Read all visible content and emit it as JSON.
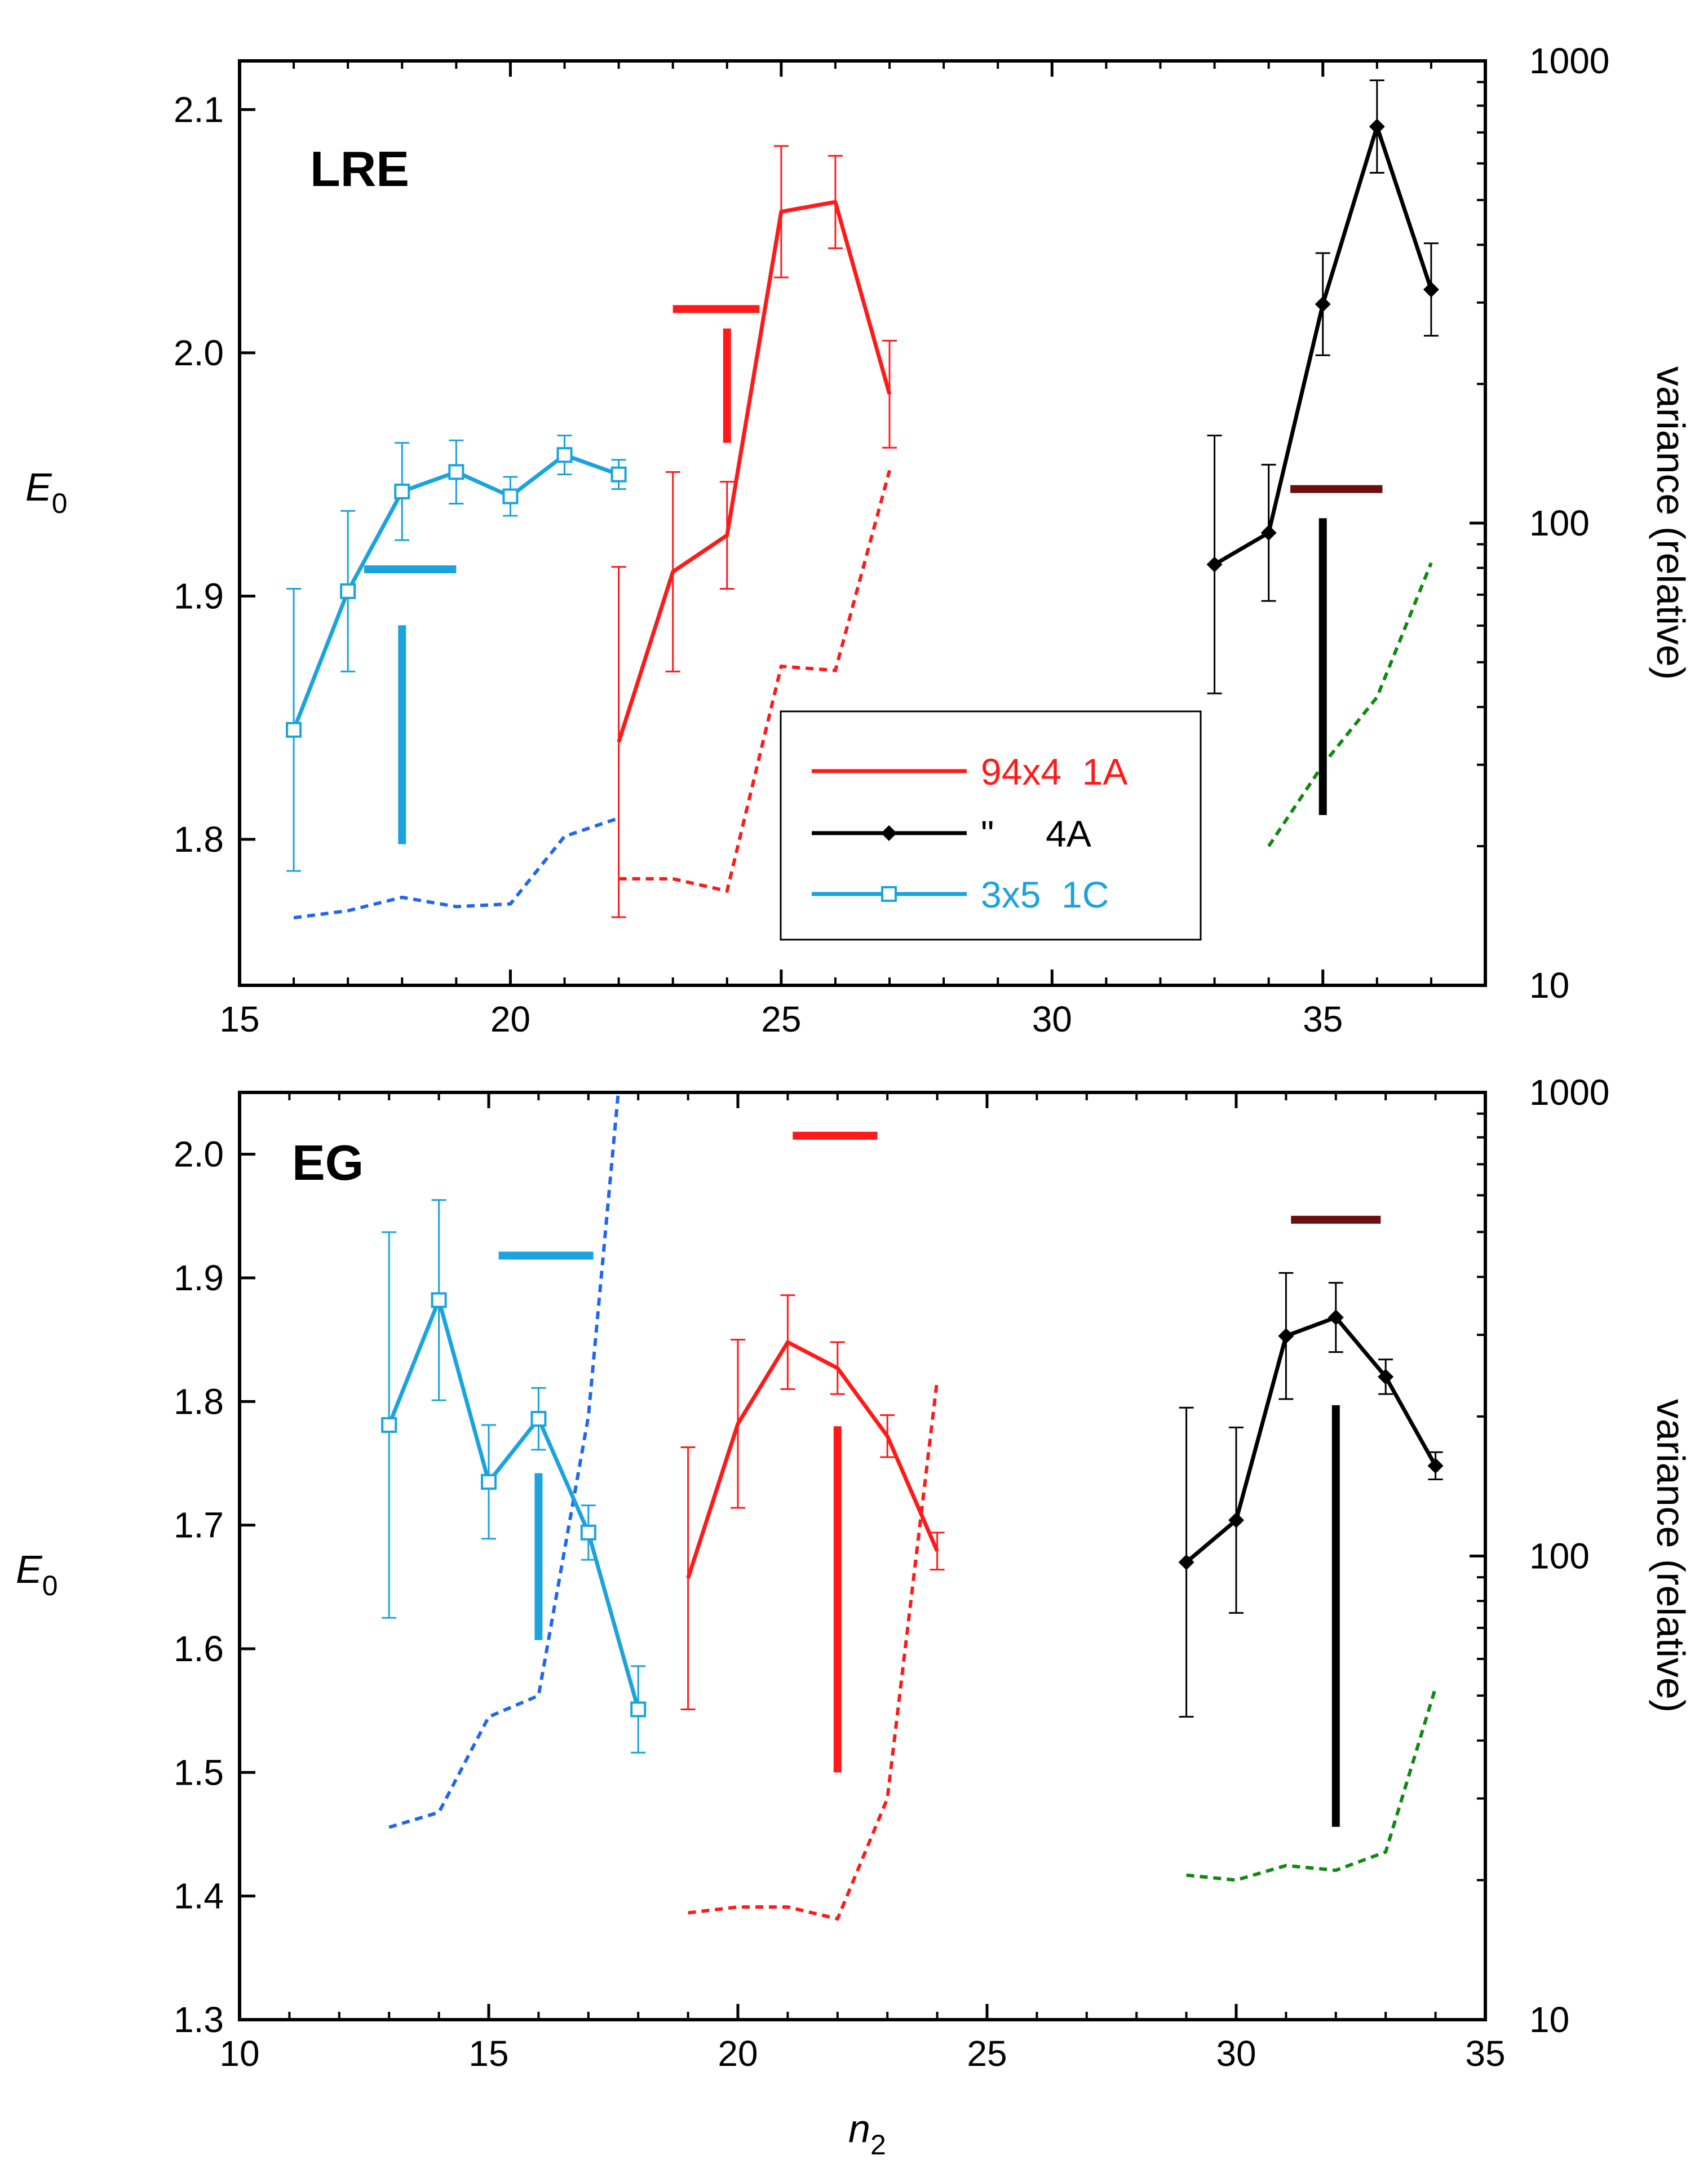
{
  "chart_data": [
    {
      "type": "line",
      "panel_label": "LRE",
      "ylabel": "E",
      "ylabel_sub": "0",
      "y2label": "variance (relative)",
      "xlim": [
        15,
        38
      ],
      "ylim": [
        1.74,
        2.12
      ],
      "y2lim": [
        10,
        1000
      ],
      "y2scale": "log",
      "xticks": [
        "15",
        "20",
        "25",
        "30",
        "35"
      ],
      "yticks": [
        "1.8",
        "1.9",
        "2.0",
        "2.1"
      ],
      "y2ticks": [
        "10",
        "100",
        "1000"
      ],
      "series": [
        {
          "name": "3x5  1C",
          "color": "#1aa3dc",
          "marker": "open-square",
          "x": [
            16,
            17,
            18,
            19,
            20,
            21,
            22
          ],
          "y": [
            1.845,
            1.902,
            1.943,
            1.951,
            1.941,
            1.958,
            1.95
          ],
          "err": [
            0.058,
            0.033,
            0.02,
            0.013,
            0.008,
            0.008,
            0.006
          ]
        },
        {
          "name": "94x4  1A",
          "color": "#ff1a1a",
          "marker": "none",
          "x": [
            22,
            23,
            24,
            25,
            26,
            27
          ],
          "y": [
            1.84,
            1.91,
            1.925,
            2.058,
            2.062,
            1.983
          ],
          "err": [
            0.072,
            0.041,
            0.022,
            0.027,
            0.019,
            0.022
          ]
        },
        {
          "name": "\"     4A",
          "color": "#000000",
          "marker": "filled-diamond",
          "x": [
            33,
            34,
            35,
            36,
            37
          ],
          "y": [
            1.913,
            1.926,
            2.02,
            2.093,
            2.026
          ],
          "err": [
            0.053,
            0.028,
            0.021,
            0.019,
            0.019
          ]
        }
      ],
      "variance_series": [
        {
          "color": "#2266ee",
          "x": [
            16,
            17,
            18,
            19,
            20,
            21,
            22
          ],
          "variance": [
            14,
            14.5,
            15.5,
            14.8,
            15,
            21,
            23
          ]
        },
        {
          "color": "#ff1a1a",
          "x": [
            22,
            23,
            24,
            25,
            26,
            27
          ],
          "variance": [
            17,
            17,
            16,
            49,
            48,
            130
          ]
        },
        {
          "color": "#118811",
          "x": [
            34,
            35,
            36,
            37
          ],
          "variance": [
            20,
            30,
            42,
            82
          ]
        }
      ],
      "markers": [
        {
          "color": "#1aa3dc",
          "orientation": "horizontal",
          "x": [
            17.3,
            19.0
          ],
          "y": 1.911
        },
        {
          "color": "#1aa3dc",
          "orientation": "vertical",
          "x": 18.0,
          "y": [
            1.798,
            1.888
          ]
        },
        {
          "color": "#ff1a1a",
          "orientation": "horizontal",
          "x": [
            23.0,
            24.6
          ],
          "y": 2.018
        },
        {
          "color": "#ff1a1a",
          "orientation": "vertical",
          "x": 24.0,
          "y": [
            1.963,
            2.01
          ]
        },
        {
          "color": "#6b0f0f",
          "orientation": "horizontal",
          "x": [
            34.4,
            36.1
          ],
          "y": 1.944
        },
        {
          "color": "#000000",
          "orientation": "vertical",
          "x": 35.0,
          "y": [
            1.81,
            1.932
          ]
        }
      ],
      "legend": {
        "position": "lower-center",
        "entries": [
          {
            "label": "94x4  1A",
            "color": "#ff1a1a",
            "marker": "none"
          },
          {
            "label": "\"     4A",
            "color": "#000000",
            "marker": "filled-diamond"
          },
          {
            "label": "3x5  1C",
            "color": "#1aa3dc",
            "marker": "open-square"
          }
        ]
      }
    },
    {
      "type": "line",
      "panel_label": "EG",
      "ylabel": "E",
      "ylabel_sub": "0",
      "xlabel": "n",
      "xlabel_sub": "2",
      "y2label": "variance (relative)",
      "xlim": [
        10,
        35
      ],
      "ylim": [
        1.3,
        2.05
      ],
      "y2lim": [
        10,
        1000
      ],
      "y2scale": "log",
      "xticks": [
        "10",
        "15",
        "20",
        "25",
        "30",
        "35"
      ],
      "yticks": [
        "1.3",
        "1.4",
        "1.5",
        "1.6",
        "1.7",
        "1.8",
        "1.9",
        "2.0"
      ],
      "y2ticks": [
        "10",
        "100",
        "1000"
      ],
      "series": [
        {
          "name": "3x5  1C",
          "color": "#1aa3dc",
          "marker": "open-square",
          "x": [
            13,
            14,
            15,
            16,
            17,
            18
          ],
          "y": [
            1.781,
            1.882,
            1.735,
            1.786,
            1.694,
            1.551
          ],
          "err": [
            0.156,
            0.081,
            0.046,
            0.025,
            0.022,
            0.035
          ]
        },
        {
          "name": "94x4  1A",
          "color": "#ff1a1a",
          "marker": "none",
          "x": [
            19,
            20,
            21,
            22,
            23,
            24
          ],
          "y": [
            1.657,
            1.782,
            1.848,
            1.827,
            1.772,
            1.679
          ],
          "err": [
            0.106,
            0.068,
            0.038,
            0.021,
            0.017,
            0.015
          ]
        },
        {
          "name": "\"     4A",
          "color": "#000000",
          "marker": "filled-diamond",
          "x": [
            29,
            30,
            31,
            32,
            33,
            34
          ],
          "y": [
            1.67,
            1.704,
            1.853,
            1.868,
            1.82,
            1.748
          ],
          "err": [
            0.125,
            0.075,
            0.051,
            0.028,
            0.014,
            0.011
          ]
        }
      ],
      "variance_series": [
        {
          "color": "#2266ee",
          "x": [
            13,
            14,
            15,
            16,
            17,
            17.6
          ],
          "variance": [
            26,
            28,
            45,
            50,
            200,
            1000
          ]
        },
        {
          "color": "#ff1a1a",
          "x": [
            19,
            20,
            21,
            22,
            23,
            24
          ],
          "variance": [
            17,
            17.5,
            17.5,
            16.5,
            30,
            240
          ]
        },
        {
          "color": "#118811",
          "x": [
            29,
            30,
            31,
            32,
            33,
            34
          ],
          "variance": [
            20.5,
            20,
            21.5,
            21,
            23,
            52
          ]
        }
      ],
      "markers": [
        {
          "color": "#1aa3dc",
          "orientation": "horizontal",
          "x": [
            15.2,
            17.1
          ],
          "y": 1.918
        },
        {
          "color": "#1aa3dc",
          "orientation": "vertical",
          "x": 16.0,
          "y": [
            1.607,
            1.742
          ]
        },
        {
          "color": "#ff1a1a",
          "orientation": "horizontal",
          "x": [
            21.1,
            22.8
          ],
          "y": 2.015
        },
        {
          "color": "#ff1a1a",
          "orientation": "vertical",
          "x": 22.0,
          "y": [
            1.5,
            1.78
          ]
        },
        {
          "color": "#6b0f0f",
          "orientation": "horizontal",
          "x": [
            31.1,
            32.9
          ],
          "y": 1.947
        },
        {
          "color": "#000000",
          "orientation": "vertical",
          "x": 32.0,
          "y": [
            1.456,
            1.797
          ]
        }
      ]
    }
  ]
}
